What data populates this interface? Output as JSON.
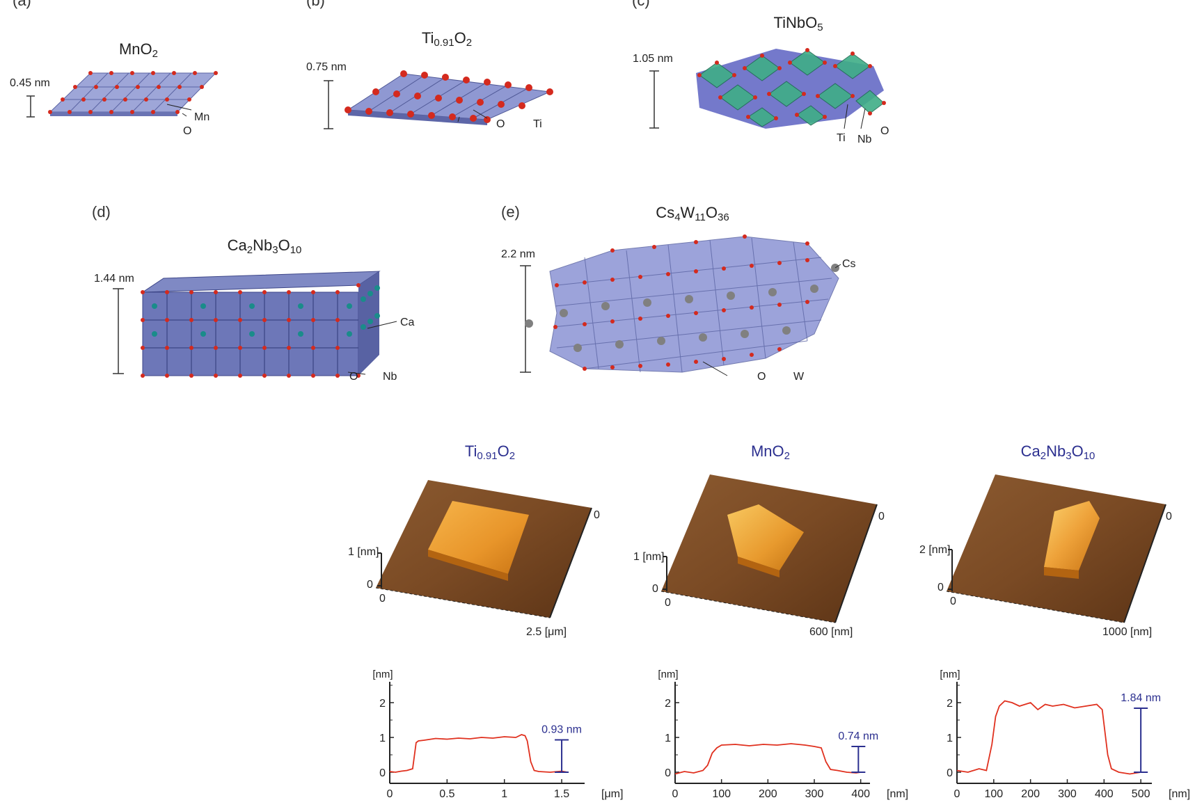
{
  "panels": {
    "a": {
      "letter": "(a)",
      "formula": [
        "MnO",
        "2",
        ""
      ],
      "thickness": "0.45 nm",
      "labels": [
        "Mn",
        "O"
      ]
    },
    "b": {
      "letter": "(b)",
      "formula": [
        "Ti",
        "0.91",
        "O",
        "2"
      ],
      "thickness": "0.75 nm",
      "labels": [
        "O",
        "Ti"
      ]
    },
    "c": {
      "letter": "(c)",
      "formula": [
        "TiNbO",
        "5"
      ],
      "thickness": "1.05 nm",
      "labels": [
        "Ti",
        "Nb",
        "O"
      ]
    },
    "d": {
      "letter": "(d)",
      "formula": [
        "Ca",
        "2",
        "Nb",
        "3",
        "O",
        "10"
      ],
      "thickness": "1.44 nm",
      "labels": [
        "Ca",
        "O",
        "Nb"
      ]
    },
    "e": {
      "letter": "(e)",
      "formula": [
        "Cs",
        "4",
        "W",
        "11",
        "O",
        "36"
      ],
      "thickness": "2.2 nm",
      "labels": [
        "Cs",
        "O",
        "W"
      ]
    }
  },
  "afm": [
    {
      "formula": [
        "Ti",
        "0.91",
        "O",
        "2"
      ],
      "zlabel": "1 [nm]",
      "zero": "0",
      "origin": "0",
      "corner": "0",
      "xmax": "2.5 [μm]"
    },
    {
      "formula": [
        "MnO",
        "2"
      ],
      "zlabel": "1 [nm]",
      "zero": "0",
      "origin": "0",
      "corner": "0",
      "xmax": "600 [nm]"
    },
    {
      "formula": [
        "Ca",
        "2",
        "Nb",
        "3",
        "O",
        "10"
      ],
      "zlabel": "2 [nm]",
      "zero": "0",
      "origin": "0",
      "corner": "0",
      "xmax": "1000 [nm]"
    }
  ],
  "chart_data": [
    {
      "type": "line",
      "ylabel": "[nm]",
      "xunit": "[μm]",
      "xticks": [
        "0",
        "0.5",
        "1",
        "1.5"
      ],
      "xtick_values": [
        0,
        0.5,
        1,
        1.5
      ],
      "yticks": [
        "0",
        "1",
        "2"
      ],
      "xlim": [
        0,
        1.7
      ],
      "ylim": [
        -0.2,
        2.6
      ],
      "annotation": "0.93 nm",
      "annotation_x": 1.5,
      "annotation_range": [
        0,
        0.93
      ],
      "x": [
        0,
        0.05,
        0.1,
        0.15,
        0.2,
        0.23,
        0.25,
        0.3,
        0.4,
        0.5,
        0.6,
        0.7,
        0.8,
        0.9,
        1.0,
        1.1,
        1.15,
        1.18,
        1.2,
        1.23,
        1.26,
        1.3,
        1.4,
        1.5,
        1.55
      ],
      "y": [
        0.02,
        0.0,
        0.03,
        0.05,
        0.1,
        0.85,
        0.9,
        0.92,
        0.97,
        0.95,
        0.98,
        0.96,
        1.0,
        0.98,
        1.02,
        1.0,
        1.08,
        1.05,
        0.9,
        0.3,
        0.05,
        0.02,
        0.0,
        0.03,
        0.0
      ]
    },
    {
      "type": "line",
      "ylabel": "[nm]",
      "xunit": "[nm]",
      "xticks": [
        "0",
        "100",
        "200",
        "300",
        "400"
      ],
      "xtick_values": [
        0,
        100,
        200,
        300,
        400
      ],
      "yticks": [
        "0",
        "1",
        "2"
      ],
      "xlim": [
        0,
        420
      ],
      "ylim": [
        -0.2,
        2.6
      ],
      "annotation": "0.74 nm",
      "annotation_x": 395,
      "annotation_range": [
        0,
        0.74
      ],
      "x": [
        0,
        20,
        40,
        60,
        70,
        80,
        90,
        100,
        130,
        160,
        190,
        220,
        250,
        280,
        300,
        315,
        325,
        335,
        350,
        370,
        390,
        400
      ],
      "y": [
        -0.05,
        0.02,
        -0.02,
        0.05,
        0.2,
        0.55,
        0.7,
        0.78,
        0.8,
        0.76,
        0.8,
        0.78,
        0.82,
        0.78,
        0.74,
        0.7,
        0.3,
        0.08,
        0.05,
        0.0,
        -0.02,
        0.0
      ]
    },
    {
      "type": "line",
      "ylabel": "[nm]",
      "xunit": "[nm]",
      "xticks": [
        "0",
        "100",
        "200",
        "300",
        "400",
        "500"
      ],
      "xtick_values": [
        0,
        100,
        200,
        300,
        400,
        500
      ],
      "yticks": [
        "0",
        "1",
        "2"
      ],
      "xlim": [
        0,
        530
      ],
      "ylim": [
        -0.2,
        2.6
      ],
      "annotation": "1.84 nm",
      "annotation_x": 500,
      "annotation_range": [
        0,
        1.84
      ],
      "x": [
        0,
        30,
        60,
        80,
        95,
        105,
        115,
        130,
        150,
        170,
        200,
        220,
        240,
        260,
        290,
        320,
        350,
        380,
        395,
        410,
        420,
        440,
        470,
        500
      ],
      "y": [
        0.05,
        0.0,
        0.1,
        0.05,
        0.8,
        1.6,
        1.9,
        2.05,
        2.0,
        1.9,
        2.0,
        1.8,
        1.95,
        1.9,
        1.95,
        1.85,
        1.9,
        1.95,
        1.8,
        0.5,
        0.1,
        0.0,
        -0.05,
        0.0
      ]
    }
  ]
}
